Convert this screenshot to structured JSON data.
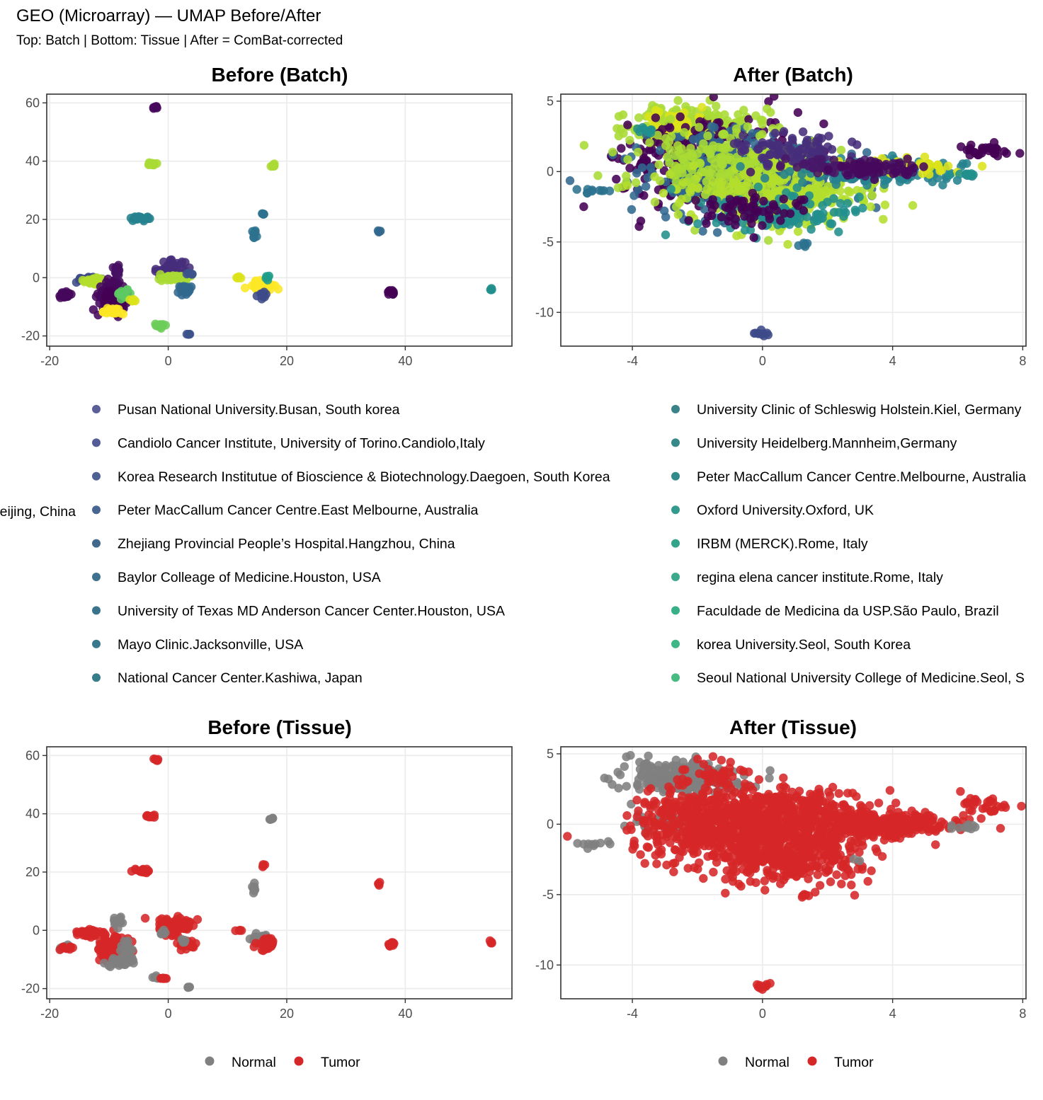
{
  "figure": {
    "title": "GEO (Microarray) — UMAP Before/After",
    "subtitle": "Top: Batch | Bottom: Tissue | After = ComBat-corrected"
  },
  "chart_data": [
    {
      "id": "before_batch",
      "type": "scatter",
      "title": "Before (Batch)",
      "xlabel": "",
      "ylabel": "",
      "xlim": [
        -20.5,
        58
      ],
      "ylim": [
        -23.5,
        63
      ],
      "xticks": [
        -20,
        0,
        20,
        40
      ],
      "yticks": [
        -20,
        0,
        20,
        40,
        60
      ],
      "grid": true,
      "color_by": "batch",
      "clusters": [
        {
          "x": -17.5,
          "y": -6,
          "sx": 0.6,
          "sy": 0.5,
          "n": 30,
          "c": 1
        },
        {
          "x": -13.5,
          "y": -0.5,
          "sx": 1.0,
          "sy": 0.4,
          "n": 45,
          "c": 6
        },
        {
          "x": -12.5,
          "y": -1,
          "sx": 0.8,
          "sy": 0.5,
          "n": 30,
          "c": 12
        },
        {
          "x": -9.5,
          "y": -6.5,
          "sx": 1.2,
          "sy": 2.2,
          "n": 130,
          "c": 1
        },
        {
          "x": -9,
          "y": -8,
          "sx": 0.9,
          "sy": 1.5,
          "n": 70,
          "c": 0
        },
        {
          "x": -8.5,
          "y": 3,
          "sx": 0.5,
          "sy": 1.0,
          "n": 20,
          "c": 2
        },
        {
          "x": -9.5,
          "y": -11.5,
          "sx": 1.0,
          "sy": 0.5,
          "n": 25,
          "c": 13
        },
        {
          "x": -7.5,
          "y": -5.5,
          "sx": 0.5,
          "sy": 0.7,
          "n": 15,
          "c": 17
        },
        {
          "x": -6,
          "y": -8,
          "sx": 0.3,
          "sy": 0.3,
          "n": 6,
          "c": 19
        },
        {
          "x": -2,
          "y": 58.5,
          "sx": 0.2,
          "sy": 0.3,
          "n": 6,
          "c": 1
        },
        {
          "x": -3,
          "y": 39,
          "sx": 0.5,
          "sy": 0.3,
          "n": 14,
          "c": 18
        },
        {
          "x": -4.5,
          "y": 20.5,
          "sx": 0.8,
          "sy": 0.4,
          "n": 22,
          "c": 8
        },
        {
          "x": 0.5,
          "y": 3,
          "sx": 1.2,
          "sy": 1.4,
          "n": 45,
          "c": 5
        },
        {
          "x": 1,
          "y": 0,
          "sx": 1.2,
          "sy": 0.6,
          "n": 45,
          "c": 18
        },
        {
          "x": 3,
          "y": -4,
          "sx": 0.8,
          "sy": 0.8,
          "n": 25,
          "c": 7
        },
        {
          "x": 3.5,
          "y": 1.5,
          "sx": 0.3,
          "sy": 0.4,
          "n": 6,
          "c": 14
        },
        {
          "x": -1.5,
          "y": -16.5,
          "sx": 0.6,
          "sy": 0.3,
          "n": 12,
          "c": 11
        },
        {
          "x": 3.5,
          "y": -19.5,
          "sx": 0.2,
          "sy": 0.3,
          "n": 4,
          "c": 14
        },
        {
          "x": 17.5,
          "y": 38.5,
          "sx": 0.4,
          "sy": 0.3,
          "n": 8,
          "c": 18
        },
        {
          "x": 16,
          "y": 22,
          "sx": 0.2,
          "sy": 0.3,
          "n": 4,
          "c": 15
        },
        {
          "x": 14.5,
          "y": 14.5,
          "sx": 0.2,
          "sy": 0.8,
          "n": 8,
          "c": 15
        },
        {
          "x": 12,
          "y": 0,
          "sx": 0.3,
          "sy": 0.3,
          "n": 4,
          "c": 19
        },
        {
          "x": 16,
          "y": -3,
          "sx": 1.2,
          "sy": 1.0,
          "n": 45,
          "c": 13
        },
        {
          "x": 16,
          "y": -6,
          "sx": 0.4,
          "sy": 0.8,
          "n": 12,
          "c": 6
        },
        {
          "x": 16.5,
          "y": 0,
          "sx": 0.3,
          "sy": 0.4,
          "n": 5,
          "c": 9
        },
        {
          "x": 35.5,
          "y": 16,
          "sx": 0.2,
          "sy": 0.3,
          "n": 4,
          "c": 7
        },
        {
          "x": 37.5,
          "y": -5,
          "sx": 0.3,
          "sy": 0.5,
          "n": 14,
          "c": 0
        },
        {
          "x": 54.5,
          "y": -4,
          "sx": 0.2,
          "sy": 0.2,
          "n": 4,
          "c": 16
        }
      ],
      "legend": {
        "position": "bottom",
        "columns": [
          {
            "offset_text": "eijing, China",
            "items": [
              "Pusan National University.Busan, South korea",
              "Candiolo Cancer Institute, University of Torino.Candiolo,Italy",
              "Korea Research Institutue of Bioscience & Biotechnology.Daegoen, South Korea",
              "Peter MacCallum Cancer Centre.East Melbourne, Australia",
              "Zhejiang Provincial People’s Hospital.Hangzhou, China",
              "Baylor Colleage of Medicine.Houston, USA",
              "University of Texas MD Anderson Cancer Center.Houston, USA",
              "Mayo Clinic.Jacksonville, USA",
              "National Cancer Center.Kashiwa, Japan"
            ]
          },
          {
            "items": [
              "University Clinic of Schleswig Holstein.Kiel, Germany",
              "University Heidelberg.Mannheim,Germany",
              "Peter MacCallum Cancer Centre.Melbourne, Australia",
              "Oxford University.Oxford, UK",
              "IRBM (MERCK).Rome, Italy",
              "regina elena cancer institute.Rome, Italy",
              "Faculdade de Medicina da USP.São Paulo, Brazil",
              "korea University.Seol, South Korea",
              "Seoul National University College of Medicine.Seol, S"
            ]
          }
        ],
        "colors": [
          "#5A5F98",
          "#545C97",
          "#4F6193",
          "#486691",
          "#42698C",
          "#3E718D",
          "#3A748B",
          "#39788A",
          "#377D89",
          "#3A8389",
          "#378989",
          "#318B8A",
          "#339A8D",
          "#33A38A",
          "#3DA98C",
          "#38AF86",
          "#3FB686",
          "#47BB81"
        ]
      }
    },
    {
      "id": "after_batch",
      "type": "scatter",
      "title": "After (Batch)",
      "xlabel": "",
      "ylabel": "",
      "xlim": [
        -6.2,
        8.1
      ],
      "ylim": [
        -12.4,
        5.5
      ],
      "xticks": [
        -4,
        0,
        4,
        8
      ],
      "yticks": [
        5,
        0,
        -5,
        -10
      ],
      "ytick_labels": [
        "5",
        "0",
        "-5",
        "-10"
      ],
      "grid": true,
      "color_by": "batch",
      "clusters": [
        {
          "x": -2.2,
          "y": 3.2,
          "sx": 0.9,
          "sy": 0.7,
          "n": 200,
          "c": 18
        },
        {
          "x": -2.7,
          "y": 3.6,
          "sx": 0.5,
          "sy": 0.5,
          "n": 50,
          "c": 19
        },
        {
          "x": -1.5,
          "y": 0.5,
          "sx": 1.4,
          "sy": 1.5,
          "n": 380,
          "c": 0
        },
        {
          "x": -0.6,
          "y": -0.3,
          "sx": 1.6,
          "sy": 1.4,
          "n": 420,
          "c": 7
        },
        {
          "x": -1,
          "y": 0.5,
          "sx": 1.5,
          "sy": 1.6,
          "n": 260,
          "c": 18
        },
        {
          "x": 0.5,
          "y": -1.5,
          "sx": 1.5,
          "sy": 1.2,
          "n": 250,
          "c": 12
        },
        {
          "x": 1,
          "y": 1.5,
          "sx": 1.0,
          "sy": 0.6,
          "n": 80,
          "c": 5
        },
        {
          "x": 3.5,
          "y": 0,
          "sx": 1.2,
          "sy": 0.45,
          "n": 200,
          "c": 8
        },
        {
          "x": 4,
          "y": 0.4,
          "sx": 1.0,
          "sy": 0.3,
          "n": 60,
          "c": 19
        },
        {
          "x": 2.5,
          "y": 0.3,
          "sx": 1.0,
          "sy": 0.3,
          "n": 70,
          "c": 3
        },
        {
          "x": 3.5,
          "y": 0.2,
          "sx": 0.8,
          "sy": 0.3,
          "n": 40,
          "c": 1
        },
        {
          "x": 0.5,
          "y": -3,
          "sx": 1.2,
          "sy": 0.7,
          "n": 120,
          "c": 16
        },
        {
          "x": -0.5,
          "y": -2.8,
          "sx": 1.0,
          "sy": 0.6,
          "n": 60,
          "c": 0
        },
        {
          "x": 6.8,
          "y": 1.5,
          "sx": 0.5,
          "sy": 0.3,
          "n": 30,
          "c": 0
        },
        {
          "x": 6.2,
          "y": -0.2,
          "sx": 0.2,
          "sy": 0.1,
          "n": 8,
          "c": 16
        },
        {
          "x": -5.3,
          "y": -1.4,
          "sx": 0.3,
          "sy": 0.1,
          "n": 10,
          "c": 15
        },
        {
          "x": 1.25,
          "y": -5.1,
          "sx": 0.1,
          "sy": 0.2,
          "n": 6,
          "c": 15
        },
        {
          "x": 0,
          "y": -11.5,
          "sx": 0.15,
          "sy": 0.1,
          "n": 10,
          "c": 6
        },
        {
          "x": -3.6,
          "y": 3,
          "sx": 0.2,
          "sy": 0.2,
          "n": 8,
          "c": 16
        }
      ]
    },
    {
      "id": "before_tissue",
      "type": "scatter",
      "title": "Before (Tissue)",
      "xlabel": "",
      "ylabel": "",
      "xlim": [
        -20.5,
        58
      ],
      "ylim": [
        -23.5,
        63
      ],
      "xticks": [
        -20,
        0,
        20,
        40
      ],
      "yticks": [
        -20,
        0,
        20,
        40,
        60
      ],
      "grid": true,
      "color_by": "tissue",
      "clusters": [
        {
          "x": -17.5,
          "y": -6,
          "sx": 0.5,
          "sy": 0.4,
          "n": 12,
          "c": "Normal"
        },
        {
          "x": -17,
          "y": -6,
          "sx": 0.5,
          "sy": 0.4,
          "n": 12,
          "c": "Tumor"
        },
        {
          "x": -13.5,
          "y": -1,
          "sx": 1.0,
          "sy": 0.5,
          "n": 60,
          "c": "Tumor"
        },
        {
          "x": -9.5,
          "y": -6.5,
          "sx": 1.2,
          "sy": 2.2,
          "n": 150,
          "c": "Tumor"
        },
        {
          "x": -8,
          "y": -11,
          "sx": 1.2,
          "sy": 1.2,
          "n": 40,
          "c": "Normal"
        },
        {
          "x": -8.5,
          "y": 3,
          "sx": 0.5,
          "sy": 1.0,
          "n": 15,
          "c": "Normal"
        },
        {
          "x": -7,
          "y": -6,
          "sx": 0.6,
          "sy": 1.2,
          "n": 15,
          "c": "Normal"
        },
        {
          "x": -2,
          "y": 58.5,
          "sx": 0.2,
          "sy": 0.3,
          "n": 6,
          "c": "Tumor"
        },
        {
          "x": -3,
          "y": 39,
          "sx": 0.5,
          "sy": 0.3,
          "n": 14,
          "c": "Tumor"
        },
        {
          "x": -4.5,
          "y": 20.5,
          "sx": 0.8,
          "sy": 0.4,
          "n": 22,
          "c": "Tumor"
        },
        {
          "x": 1,
          "y": 1.5,
          "sx": 1.5,
          "sy": 1.5,
          "n": 90,
          "c": "Tumor"
        },
        {
          "x": -1,
          "y": -0.5,
          "sx": 0.4,
          "sy": 0.4,
          "n": 8,
          "c": "Normal"
        },
        {
          "x": 3,
          "y": -5,
          "sx": 0.8,
          "sy": 0.8,
          "n": 25,
          "c": "Tumor"
        },
        {
          "x": 2.5,
          "y": -3.5,
          "sx": 0.3,
          "sy": 0.3,
          "n": 6,
          "c": "Normal"
        },
        {
          "x": -2,
          "y": -16,
          "sx": 0.3,
          "sy": 0.3,
          "n": 6,
          "c": "Normal"
        },
        {
          "x": -1,
          "y": -16.5,
          "sx": 0.4,
          "sy": 0.3,
          "n": 6,
          "c": "Tumor"
        },
        {
          "x": 3.5,
          "y": -19.5,
          "sx": 0.2,
          "sy": 0.3,
          "n": 4,
          "c": "Normal"
        },
        {
          "x": 17.5,
          "y": 38.5,
          "sx": 0.3,
          "sy": 0.3,
          "n": 6,
          "c": "Normal"
        },
        {
          "x": 16,
          "y": 22,
          "sx": 0.2,
          "sy": 0.3,
          "n": 4,
          "c": "Tumor"
        },
        {
          "x": 14.5,
          "y": 14.5,
          "sx": 0.2,
          "sy": 0.8,
          "n": 8,
          "c": "Normal"
        },
        {
          "x": 12,
          "y": 0,
          "sx": 0.3,
          "sy": 0.3,
          "n": 4,
          "c": "Tumor"
        },
        {
          "x": 15.5,
          "y": -3,
          "sx": 1.0,
          "sy": 1.0,
          "n": 25,
          "c": "Normal"
        },
        {
          "x": 16.5,
          "y": -4,
          "sx": 0.8,
          "sy": 1.2,
          "n": 30,
          "c": "Tumor"
        },
        {
          "x": 35.5,
          "y": 16,
          "sx": 0.2,
          "sy": 0.3,
          "n": 4,
          "c": "Tumor"
        },
        {
          "x": 37.5,
          "y": -5,
          "sx": 0.3,
          "sy": 0.5,
          "n": 14,
          "c": "Tumor"
        },
        {
          "x": 54.5,
          "y": -4,
          "sx": 0.2,
          "sy": 0.2,
          "n": 4,
          "c": "Tumor"
        }
      ],
      "legend": {
        "position": "bottom",
        "items": [
          {
            "label": "Normal",
            "color": "#808080"
          },
          {
            "label": "Tumor",
            "color": "#D62728"
          }
        ]
      }
    },
    {
      "id": "after_tissue",
      "type": "scatter",
      "title": "After (Tissue)",
      "xlabel": "",
      "ylabel": "",
      "xlim": [
        -6.2,
        8.1
      ],
      "ylim": [
        -12.4,
        5.5
      ],
      "xticks": [
        -4,
        0,
        4,
        8
      ],
      "yticks": [
        5,
        0,
        -5,
        -10
      ],
      "ytick_labels": [
        "5",
        "0",
        "-5",
        "-10"
      ],
      "grid": true,
      "color_by": "tissue",
      "clusters": [
        {
          "x": -2.4,
          "y": 3.3,
          "sx": 0.9,
          "sy": 0.6,
          "n": 260,
          "c": "Normal"
        },
        {
          "x": -3,
          "y": 0.2,
          "sx": 0.5,
          "sy": 0.4,
          "n": 40,
          "c": "Normal"
        },
        {
          "x": -1.5,
          "y": 3.5,
          "sx": 0.6,
          "sy": 0.5,
          "n": 40,
          "c": "Tumor"
        },
        {
          "x": -1.5,
          "y": 0.3,
          "sx": 1.2,
          "sy": 1.2,
          "n": 380,
          "c": "Tumor"
        },
        {
          "x": 0,
          "y": -0.5,
          "sx": 1.6,
          "sy": 1.3,
          "n": 500,
          "c": "Tumor"
        },
        {
          "x": 0.8,
          "y": -2.5,
          "sx": 1.3,
          "sy": 0.9,
          "n": 250,
          "c": "Tumor"
        },
        {
          "x": 1,
          "y": 1.2,
          "sx": 1.0,
          "sy": 0.6,
          "n": 120,
          "c": "Tumor"
        },
        {
          "x": 3.5,
          "y": 0,
          "sx": 1.2,
          "sy": 0.45,
          "n": 320,
          "c": "Tumor"
        },
        {
          "x": 6.8,
          "y": 1.5,
          "sx": 0.5,
          "sy": 0.3,
          "n": 30,
          "c": "Tumor"
        },
        {
          "x": 6.2,
          "y": -0.2,
          "sx": 0.2,
          "sy": 0.1,
          "n": 10,
          "c": "Normal"
        },
        {
          "x": -5.3,
          "y": -1.4,
          "sx": 0.3,
          "sy": 0.1,
          "n": 10,
          "c": "Normal"
        },
        {
          "x": 1.25,
          "y": -5.1,
          "sx": 0.1,
          "sy": 0.2,
          "n": 6,
          "c": "Tumor"
        },
        {
          "x": 0,
          "y": -11.5,
          "sx": 0.15,
          "sy": 0.1,
          "n": 10,
          "c": "Tumor"
        },
        {
          "x": 2.9,
          "y": -2.6,
          "sx": 0.1,
          "sy": 0.1,
          "n": 2,
          "c": "Normal"
        }
      ],
      "legend": {
        "position": "bottom",
        "items": [
          {
            "label": "Normal",
            "color": "#808080"
          },
          {
            "label": "Tumor",
            "color": "#D62728"
          }
        ]
      }
    }
  ],
  "colors": {
    "batch_palette": [
      "#440154",
      "#46085C",
      "#471063",
      "#481769",
      "#48186A",
      "#472D7B",
      "#3E4A89",
      "#31688E",
      "#26828E",
      "#1F9E89",
      "#35B779",
      "#6DCD59",
      "#B4DE2C",
      "#FDE725",
      "#3B528B",
      "#2C728E",
      "#21908D",
      "#5DC863",
      "#A8DB34",
      "#DCE319"
    ],
    "tissue": {
      "Normal": "#808080",
      "Tumor": "#D62728"
    },
    "panel_border": "#333333",
    "grid": "#EBEBEB"
  }
}
